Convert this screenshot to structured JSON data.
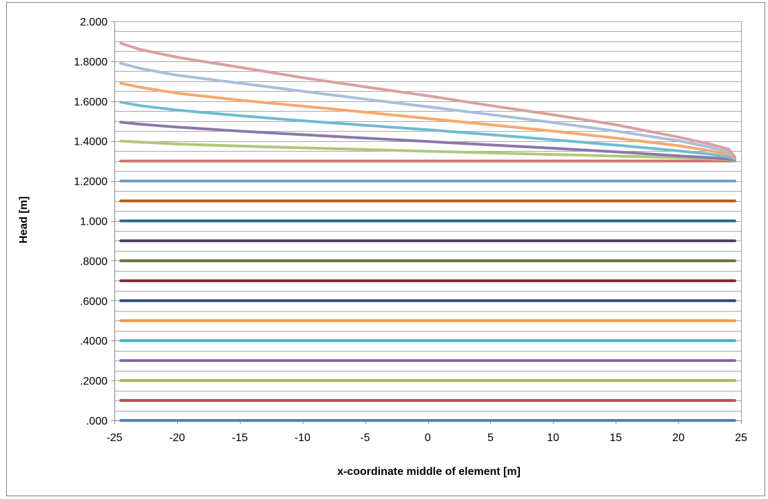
{
  "chart_data": {
    "type": "line",
    "xlabel": "x-coordinate middle of element [m]",
    "ylabel": "Head [m]",
    "xlim": [
      -25,
      25
    ],
    "ylim": [
      0,
      2
    ],
    "grid": true,
    "legend": "none",
    "x_ticks": [
      {
        "value": -25,
        "label": "-25"
      },
      {
        "value": -20,
        "label": "-20"
      },
      {
        "value": -15,
        "label": "-15"
      },
      {
        "value": -10,
        "label": "-10"
      },
      {
        "value": -5,
        "label": "-5"
      },
      {
        "value": 0,
        "label": "0"
      },
      {
        "value": 5,
        "label": "5"
      },
      {
        "value": 10,
        "label": "10"
      },
      {
        "value": 15,
        "label": "15"
      },
      {
        "value": 20,
        "label": "20"
      },
      {
        "value": 25,
        "label": "25"
      }
    ],
    "y_ticks": [
      {
        "value": 0.0,
        "label": ".000"
      },
      {
        "value": 0.2,
        "label": ".2000"
      },
      {
        "value": 0.4,
        "label": ".4000"
      },
      {
        "value": 0.6,
        "label": ".6000"
      },
      {
        "value": 0.8,
        "label": ".8000"
      },
      {
        "value": 1.0,
        "label": "1.000"
      },
      {
        "value": 1.2,
        "label": "1.2000"
      },
      {
        "value": 1.4,
        "label": "1.4000"
      },
      {
        "value": 1.6,
        "label": "1.6000"
      },
      {
        "value": 1.8,
        "label": "1.8000"
      },
      {
        "value": 2.0,
        "label": "2.000"
      }
    ],
    "y_minor_step": 0.05,
    "x_points": [
      -24.5,
      -23,
      -20,
      -15,
      -10,
      -5,
      0,
      5,
      10,
      15,
      20,
      22.5,
      24,
      24.5
    ],
    "series": [
      {
        "color": "#4f81bd",
        "values": [
          0,
          0,
          0,
          0,
          0,
          0,
          0,
          0,
          0,
          0,
          0,
          0,
          0,
          0
        ]
      },
      {
        "color": "#c0504d",
        "values": [
          0.1,
          0.1,
          0.1,
          0.1,
          0.1,
          0.1,
          0.1,
          0.1,
          0.1,
          0.1,
          0.1,
          0.1,
          0.1,
          0.1
        ]
      },
      {
        "color": "#9bbb59",
        "values": [
          0.2,
          0.2,
          0.2,
          0.2,
          0.2,
          0.2,
          0.2,
          0.2,
          0.2,
          0.2,
          0.2,
          0.2,
          0.2,
          0.2
        ]
      },
      {
        "color": "#8064a2",
        "values": [
          0.3,
          0.3,
          0.3,
          0.3,
          0.3,
          0.3,
          0.3,
          0.3,
          0.3,
          0.3,
          0.3,
          0.3,
          0.3,
          0.3
        ]
      },
      {
        "color": "#4bacc6",
        "values": [
          0.4,
          0.4,
          0.4,
          0.4,
          0.4,
          0.4,
          0.4,
          0.4,
          0.4,
          0.4,
          0.4,
          0.4,
          0.4,
          0.4
        ]
      },
      {
        "color": "#f79646",
        "values": [
          0.5,
          0.5,
          0.5,
          0.5,
          0.5,
          0.5,
          0.5,
          0.5,
          0.5,
          0.5,
          0.5,
          0.5,
          0.5,
          0.5
        ]
      },
      {
        "color": "#2c4d75",
        "values": [
          0.6,
          0.6,
          0.6,
          0.6,
          0.6,
          0.6,
          0.6,
          0.6,
          0.6,
          0.6,
          0.6,
          0.6,
          0.6,
          0.6
        ]
      },
      {
        "color": "#772c2a",
        "values": [
          0.7,
          0.7,
          0.7,
          0.7,
          0.7,
          0.7,
          0.7,
          0.7,
          0.7,
          0.7,
          0.7,
          0.7,
          0.7,
          0.7
        ]
      },
      {
        "color": "#5f7530",
        "values": [
          0.8,
          0.8,
          0.8,
          0.8,
          0.8,
          0.8,
          0.8,
          0.8,
          0.8,
          0.8,
          0.8,
          0.8,
          0.8,
          0.8
        ]
      },
      {
        "color": "#4d3b62",
        "values": [
          0.9,
          0.9,
          0.9,
          0.9,
          0.9,
          0.9,
          0.9,
          0.9,
          0.9,
          0.9,
          0.9,
          0.9,
          0.9,
          0.9
        ]
      },
      {
        "color": "#276a7c",
        "values": [
          1.0,
          1.0,
          1.0,
          1.0,
          1.0,
          1.0,
          1.0,
          1.0,
          1.0,
          1.0,
          1.0,
          1.0,
          1.0,
          1.0
        ]
      },
      {
        "color": "#b65708",
        "values": [
          1.1,
          1.1,
          1.1,
          1.1,
          1.1,
          1.1,
          1.1,
          1.1,
          1.1,
          1.1,
          1.1,
          1.1,
          1.1,
          1.1
        ]
      },
      {
        "color": "#729aca",
        "values": [
          1.2,
          1.2,
          1.2,
          1.2,
          1.2,
          1.2,
          1.2,
          1.2,
          1.2,
          1.2,
          1.2,
          1.2,
          1.2,
          1.2
        ]
      },
      {
        "color": "#cd7371",
        "values": [
          1.3,
          1.3,
          1.3,
          1.3,
          1.3,
          1.3,
          1.3,
          1.3,
          1.3,
          1.3,
          1.3,
          1.3,
          1.3,
          1.3
        ]
      },
      {
        "color": "#afc97a",
        "values": [
          1.4,
          1.395,
          1.385,
          1.375,
          1.366,
          1.358,
          1.349,
          1.341,
          1.333,
          1.325,
          1.317,
          1.312,
          1.307,
          1.302
        ]
      },
      {
        "color": "#8d78a8",
        "values": [
          1.495,
          1.485,
          1.47,
          1.45,
          1.432,
          1.415,
          1.398,
          1.381,
          1.364,
          1.346,
          1.326,
          1.317,
          1.31,
          1.305
        ]
      },
      {
        "color": "#6fbcd0",
        "values": [
          1.595,
          1.578,
          1.555,
          1.527,
          1.502,
          1.479,
          1.457,
          1.432,
          1.407,
          1.38,
          1.351,
          1.335,
          1.32,
          1.308
        ]
      },
      {
        "color": "#f9a86b",
        "values": [
          1.69,
          1.67,
          1.64,
          1.605,
          1.575,
          1.545,
          1.513,
          1.482,
          1.45,
          1.415,
          1.377,
          1.352,
          1.333,
          1.315
        ]
      },
      {
        "color": "#a9bdde",
        "values": [
          1.79,
          1.765,
          1.73,
          1.69,
          1.65,
          1.61,
          1.572,
          1.533,
          1.493,
          1.45,
          1.402,
          1.37,
          1.345,
          1.318
        ]
      },
      {
        "color": "#d9a09f",
        "values": [
          1.89,
          1.86,
          1.82,
          1.77,
          1.718,
          1.672,
          1.627,
          1.578,
          1.532,
          1.482,
          1.42,
          1.385,
          1.36,
          1.32
        ]
      }
    ]
  }
}
